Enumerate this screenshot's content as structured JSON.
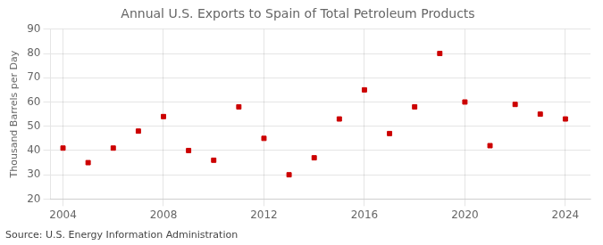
{
  "chart_data": {
    "type": "scatter",
    "title": "Annual U.S. Exports to Spain of Total Petroleum Products",
    "ylabel": "Thousand Barrels per Day",
    "annotations": [
      "Source: U.S. Energy Information Administration"
    ],
    "x": [
      2004,
      2005,
      2006,
      2007,
      2008,
      2009,
      2010,
      2011,
      2012,
      2013,
      2014,
      2015,
      2016,
      2017,
      2018,
      2019,
      2020,
      2021,
      2022,
      2023,
      2024
    ],
    "values": [
      41,
      35,
      41,
      48,
      54,
      40,
      36,
      58,
      45,
      30,
      37,
      53,
      65,
      47,
      58,
      80,
      60,
      42,
      59,
      55,
      53
    ],
    "color": "#cc0000",
    "marker": "square",
    "xlim": [
      2003.5,
      2025
    ],
    "ylim": [
      20,
      90
    ],
    "xticks": [
      2004,
      2008,
      2012,
      2016,
      2020,
      2024
    ],
    "yticks": [
      20,
      30,
      40,
      50,
      60,
      70,
      80,
      90
    ],
    "grid": true
  }
}
